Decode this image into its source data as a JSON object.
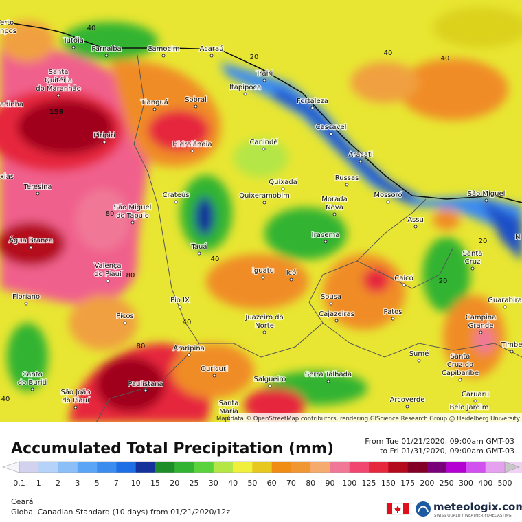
{
  "map": {
    "attribution": "Map data © OpenStreetMap contributors, rendering GIScience Research Group @ Heidelberg University",
    "contour_labels": [
      159,
      40,
      40,
      40,
      40,
      40,
      40,
      20,
      20,
      20,
      80,
      80,
      80
    ],
    "edge_labels": [
      "erto",
      "npos",
      "adinha",
      "xias",
      "N"
    ],
    "cities": [
      [
        "Tutóia"
      ],
      [
        "Parnaíba"
      ],
      [
        "Camocim"
      ],
      [
        "Acaraú"
      ],
      [
        "Santa",
        "Quitéria",
        "do Maranhão"
      ],
      [
        "Trairi"
      ],
      [
        "Itapipoca"
      ],
      [
        "Fortaleza"
      ],
      [
        "Tianguá"
      ],
      [
        "Sobral"
      ],
      [
        "Piripiri"
      ],
      [
        "Hidrolândia"
      ],
      [
        "Canindé"
      ],
      [
        "Cascavel"
      ],
      [
        "Aracati"
      ],
      [
        "Teresina"
      ],
      [
        "Quixadá"
      ],
      [
        "Russas"
      ],
      [
        "Crateús"
      ],
      [
        "Quixeramobim"
      ],
      [
        "Morada",
        "Nova"
      ],
      [
        "Mossoró"
      ],
      [
        "São Miguel"
      ],
      [
        "São Miguel",
        "do Tapuio"
      ],
      [
        "Assu"
      ],
      [
        "Iracema"
      ],
      [
        "Água Branca"
      ],
      [
        "Tauá"
      ],
      [
        "Santa",
        "Cruz"
      ],
      [
        "Valença",
        "do Piauí"
      ],
      [
        "Iguatu"
      ],
      [
        "Icó"
      ],
      [
        "Caicó"
      ],
      [
        "Floriano"
      ],
      [
        "Pio IX"
      ],
      [
        "Sousa"
      ],
      [
        "Cajazeiras"
      ],
      [
        "Patos"
      ],
      [
        "Guarabira"
      ],
      [
        "Picos"
      ],
      [
        "Juazeiro do",
        "Norte"
      ],
      [
        "Campina",
        "Grande"
      ],
      [
        "Araripina"
      ],
      [
        "Timbe"
      ],
      [
        "Sumé"
      ],
      [
        "Santa",
        "Cruz do",
        "Capibaribe"
      ],
      [
        "Ouricuri"
      ],
      [
        "Serra Talhada"
      ],
      [
        "Canto",
        "do Buriti"
      ],
      [
        "Salgueiro"
      ],
      [
        "Paulistana"
      ],
      [
        "São João",
        "do Piauí"
      ],
      [
        "Arcoverde"
      ],
      [
        "Caruaru"
      ],
      [
        "Santa",
        "Maria"
      ],
      [
        "Belo Jardim"
      ]
    ]
  },
  "legend": {
    "title": "Accumulated Total Precipitation (mm)",
    "from": "From Tue 01/21/2020, 09:00am GMT-03",
    "to": "to Fri 01/31/2020, 09:00am GMT-03",
    "ticks": [
      0.1,
      1,
      2,
      3,
      5,
      7,
      10,
      15,
      20,
      25,
      30,
      40,
      50,
      60,
      70,
      80,
      90,
      100,
      125,
      150,
      175,
      200,
      250,
      300,
      400,
      500
    ],
    "below_color": "#f5f5fa",
    "colors": [
      "#d2d2ee",
      "#b4d2fa",
      "#8cbef8",
      "#5aa5f5",
      "#3c8cf0",
      "#1e6ee6",
      "#14329a",
      "#1e8c28",
      "#32b432",
      "#5ad23c",
      "#b4e646",
      "#f0f03c",
      "#e6c81e",
      "#f08c14",
      "#f09632",
      "#f5aa6e",
      "#f07896",
      "#f04670",
      "#e6283c",
      "#b40a1e",
      "#820028",
      "#780078",
      "#b400d2",
      "#d250f0",
      "#e6a0f0",
      "#f0d2f5"
    ],
    "above_color": "#c8c8c8"
  },
  "footer": {
    "region": "Ceará",
    "model": "Global Canadian Standard (10 days) from 01/21/2020/12z",
    "brand": "meteologix.com",
    "tagline": "SWISS QUALITY WEATHER FORECASTING"
  }
}
